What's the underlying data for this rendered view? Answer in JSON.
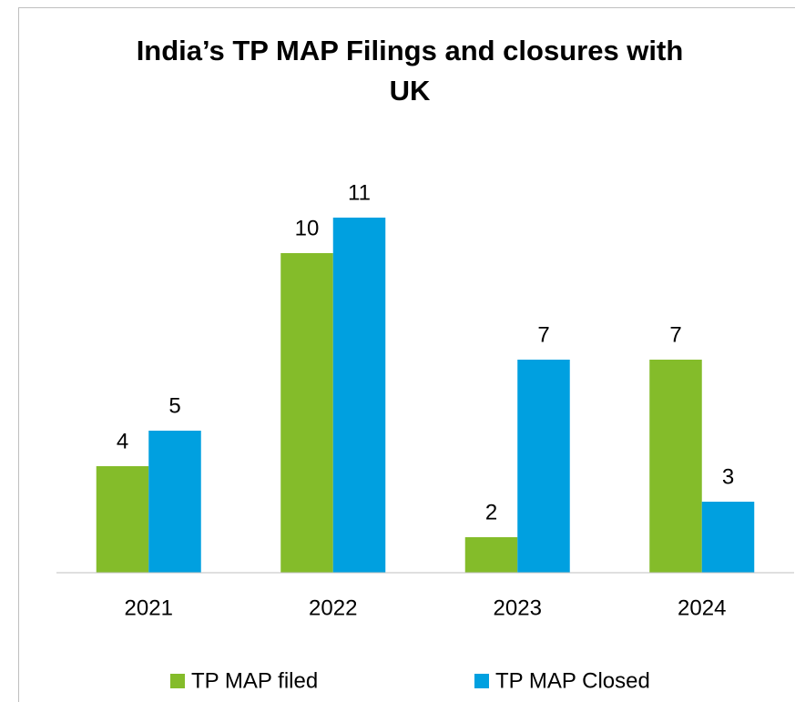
{
  "chart_data": {
    "type": "bar",
    "title": "India’s TP MAP Filings and closures with UK",
    "categories": [
      "2021",
      "2022",
      "2023",
      "2024"
    ],
    "series": [
      {
        "name": "TP MAP filed",
        "color": "#84bc2a",
        "values": [
          4,
          10,
          2,
          7
        ]
      },
      {
        "name": "TP MAP Closed",
        "color": "#00a0e0",
        "values": [
          5,
          11,
          7,
          3
        ]
      }
    ],
    "ylim": [
      1,
      12
    ],
    "grid": false,
    "legend": "bottom"
  }
}
